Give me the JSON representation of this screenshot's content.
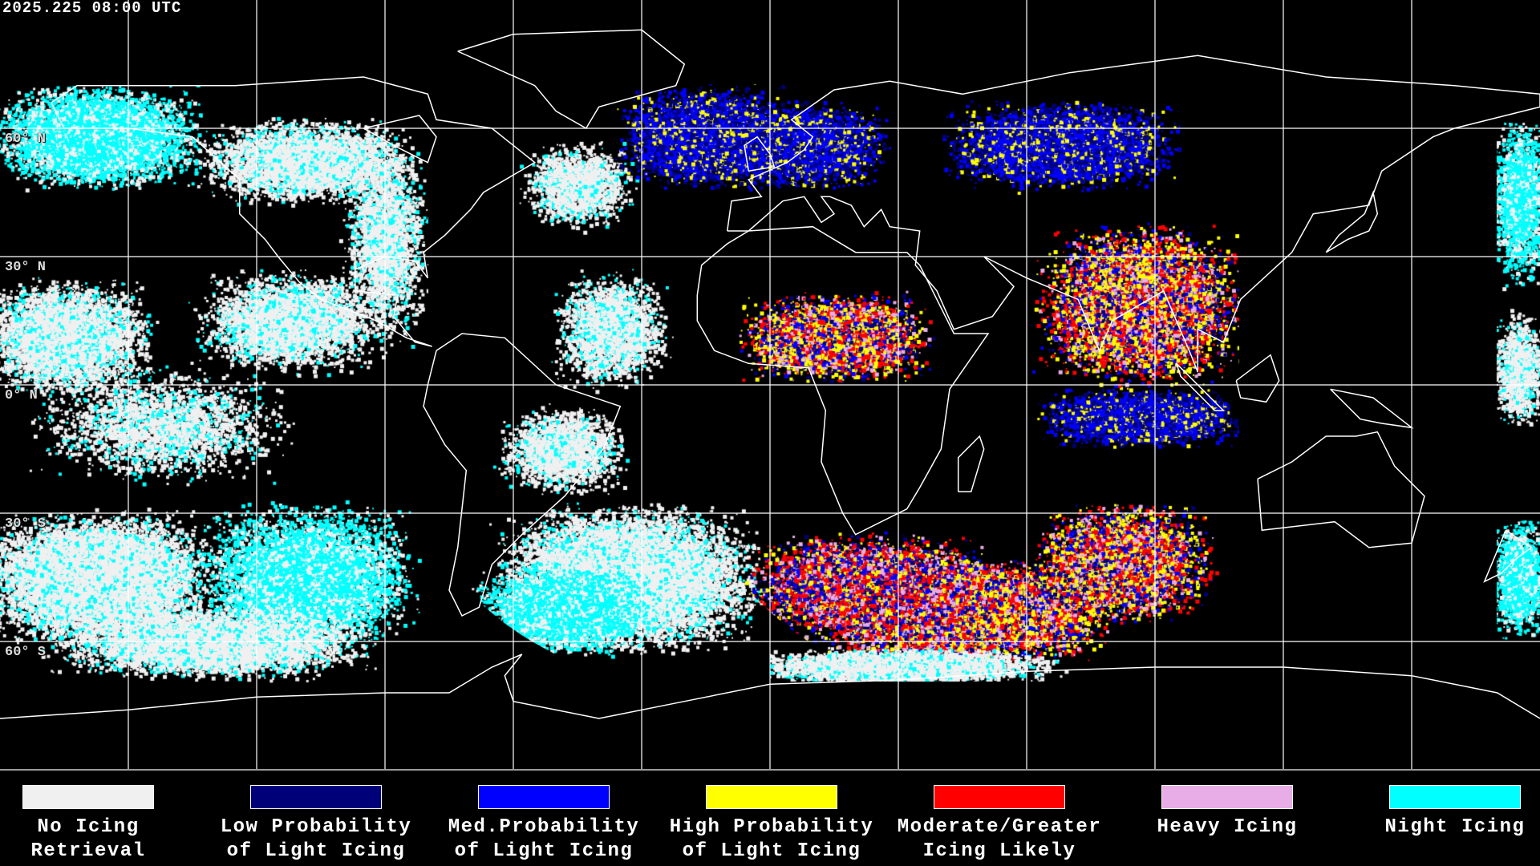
{
  "header": {
    "timestamp": "2025.225 08:00 UTC"
  },
  "map": {
    "latitude_labels": [
      "60° N",
      "30° N",
      "0° N",
      "30° S",
      "60° S"
    ],
    "grid_spacing_degrees": 30,
    "projection": "equirectangular"
  },
  "legend": {
    "items": [
      {
        "line1": "No Icing",
        "line2": "Retrieval",
        "color": "#f0f0f0"
      },
      {
        "line1": "Low Probability",
        "line2": "of Light Icing",
        "color": "#000078"
      },
      {
        "line1": "Med.Probability",
        "line2": "of Light Icing",
        "color": "#0000ff"
      },
      {
        "line1": "High Probability",
        "line2": "of Light Icing",
        "color": "#ffff00"
      },
      {
        "line1": "Moderate/Greater",
        "line2": "Icing Likely",
        "color": "#ff0000"
      },
      {
        "line1": "Heavy Icing",
        "line2": "",
        "color": "#e8ace6"
      },
      {
        "line1": "Night Icing",
        "line2": "",
        "color": "#00ffff"
      }
    ]
  }
}
